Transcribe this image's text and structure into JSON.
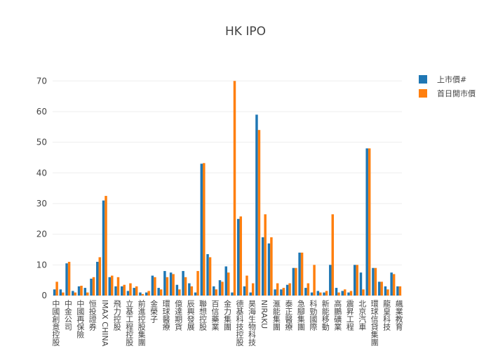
{
  "chart_data": {
    "type": "bar",
    "title": "HK IPO",
    "categories": [
      "中國創意控股",
      null,
      "中金公司",
      null,
      "中國再保險",
      null,
      "恒投證券",
      null,
      "IMAX CHINA",
      null,
      "飛力控股",
      null,
      "立基工程控股",
      null,
      "前進控股集團",
      null,
      "金榮子",
      null,
      "環球醫療",
      null,
      "億達期貨",
      null,
      "辰興發展",
      null,
      "聯想控股",
      null,
      "百信藥業",
      null,
      "金力集團",
      null,
      "德基科技控股",
      null,
      "昊海生物科技",
      null,
      "NIRAKU",
      null,
      "滙能集團",
      null,
      "泰正醫療",
      null,
      "急腳集團",
      null,
      "科勁國際",
      null,
      "新能移動",
      null,
      "高鵬礦業",
      null,
      "震昇工程",
      null,
      "北京汽車",
      null,
      "環球信貸集團",
      null,
      "龍皇科技",
      null,
      "飆業教育"
    ],
    "series": [
      {
        "name": "上市價#",
        "color": "#1f77b4",
        "values": [
          2,
          2,
          10.5,
          1.5,
          3,
          2.5,
          5.5,
          11,
          31,
          6,
          3,
          3,
          1.5,
          2.5,
          1,
          1,
          6.5,
          2.5,
          8,
          7.5,
          3.5,
          8,
          4,
          1,
          43,
          13.5,
          3,
          5,
          9.5,
          1,
          25,
          3,
          1,
          59,
          19,
          17,
          2,
          2,
          3.5,
          9,
          14,
          2.5,
          1,
          1.5,
          1,
          10,
          2.5,
          1.5,
          1,
          10,
          7.5,
          48,
          9,
          4.5,
          3,
          7.5,
          3
        ]
      },
      {
        "name": "首日開市價",
        "color": "#ff7f0e",
        "values": [
          4.5,
          1,
          11,
          1,
          3.2,
          1,
          6,
          12.5,
          32.5,
          6.5,
          6,
          3.5,
          4,
          3,
          0.5,
          1.5,
          6,
          2,
          6,
          7,
          2,
          6,
          3,
          8,
          43.2,
          12.5,
          2,
          4.5,
          7.5,
          70,
          25.8,
          6.5,
          4,
          54,
          26.5,
          19,
          4,
          2.5,
          4,
          9,
          14,
          4,
          10,
          1,
          1.5,
          26.5,
          1,
          2,
          1.5,
          10,
          2,
          48,
          9,
          4.5,
          2,
          7,
          3
        ]
      }
    ],
    "ylim": [
      0,
      73.5
    ],
    "yticks": [
      0,
      10,
      20,
      30,
      40,
      50,
      60,
      70
    ],
    "grid": true,
    "legend": "top-right"
  }
}
